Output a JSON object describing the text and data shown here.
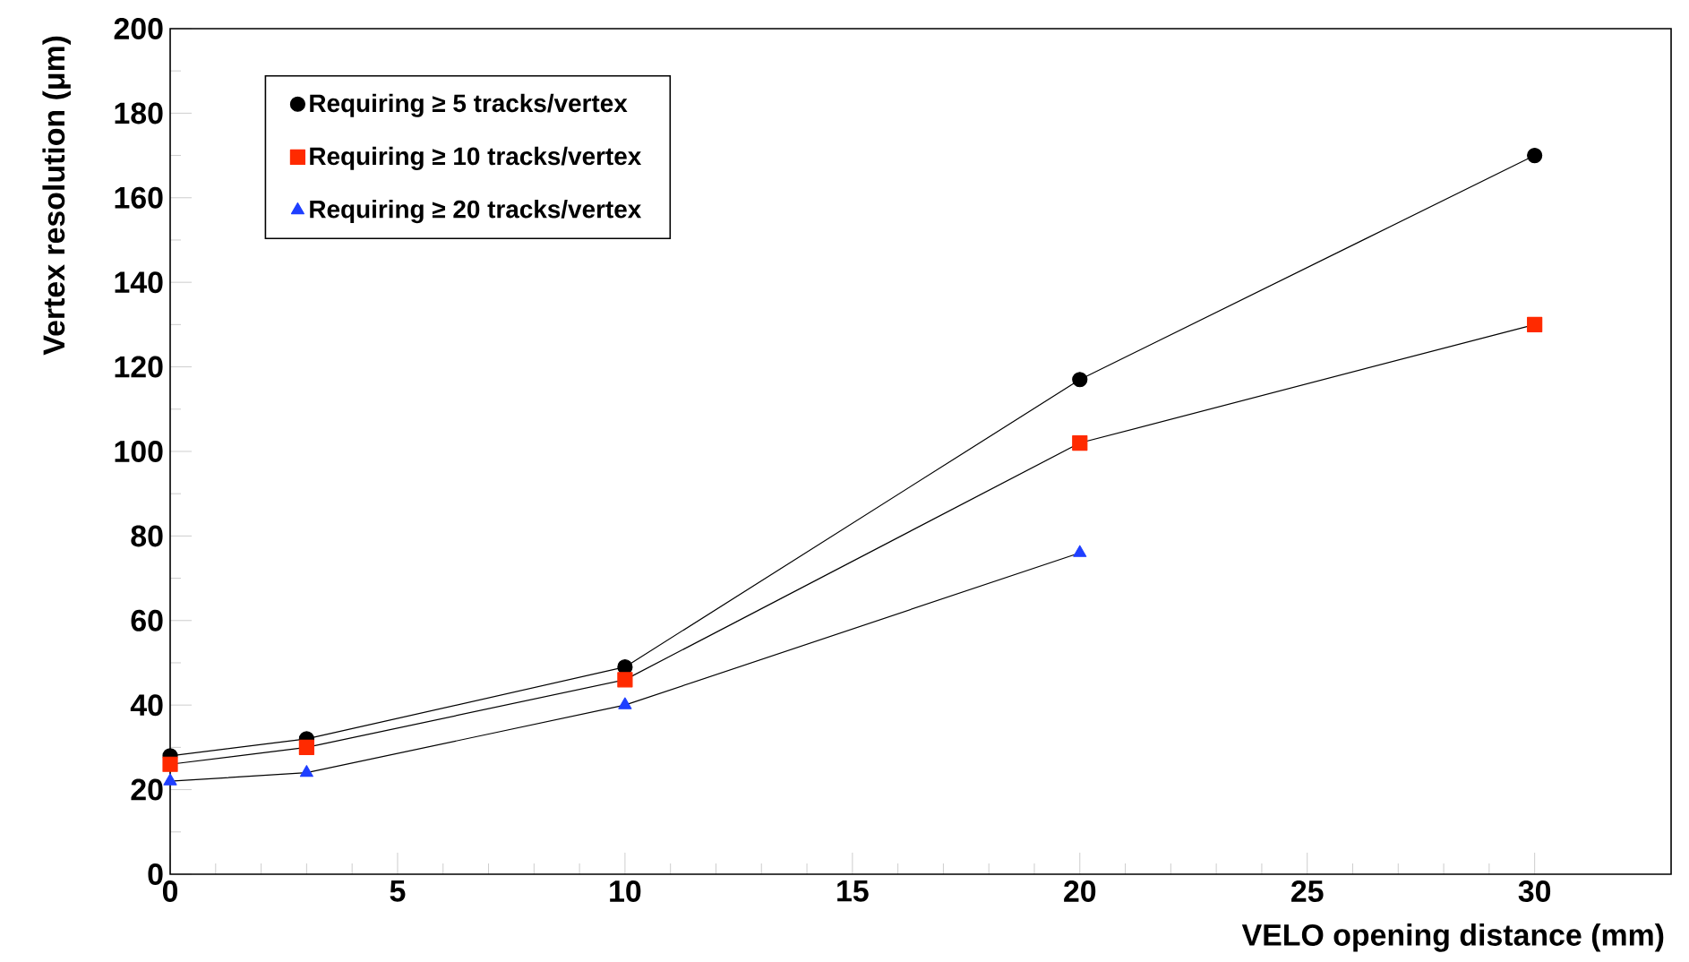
{
  "chart_data": {
    "type": "line",
    "xlabel": "VELO opening distance (mm)",
    "ylabel": "Vertex resolution (μm)",
    "x": [
      0,
      3,
      10,
      20,
      30
    ],
    "series": [
      {
        "name": "Requiring ≥ 5 tracks/vertex",
        "color": "#000000",
        "marker": "circle",
        "values": [
          28,
          32,
          49,
          117,
          170
        ]
      },
      {
        "name": "Requiring ≥ 10 tracks/vertex",
        "color": "#ff2a00",
        "marker": "square",
        "values": [
          26,
          30,
          46,
          102,
          130
        ]
      },
      {
        "name": "Requiring ≥ 20 tracks/vertex",
        "color": "#1f3fff",
        "marker": "triangle",
        "values": [
          22,
          24,
          40,
          76,
          null
        ]
      }
    ],
    "xlim": [
      0,
      33
    ],
    "ylim": [
      0,
      200
    ],
    "xticks": [
      0,
      5,
      10,
      15,
      20,
      25,
      30
    ],
    "yticks": [
      0,
      20,
      40,
      60,
      80,
      100,
      120,
      140,
      160,
      180,
      200
    ],
    "legend": "top left",
    "grid": false,
    "line_style": "solid"
  }
}
